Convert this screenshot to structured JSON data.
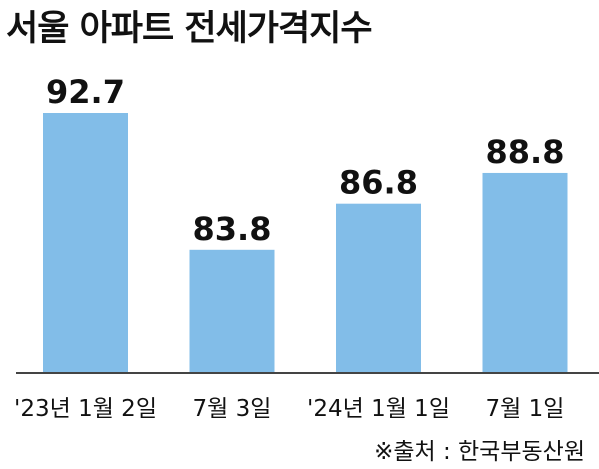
{
  "chart_data": {
    "type": "bar",
    "title": "서울 아파트 전세가격지수",
    "categories": [
      "'23년 1월 2일",
      "7월 3일",
      "'24년 1월 1일",
      "7월 1일"
    ],
    "values": [
      92.7,
      83.8,
      86.8,
      88.8
    ],
    "data_labels": [
      "92.7",
      "83.8",
      "86.8",
      "88.8"
    ],
    "xlabel": "",
    "ylabel": "",
    "y_axis_visible": false,
    "grid": false,
    "bar_color": "#82bde8",
    "source": "※출처 : 한국부동산원"
  }
}
